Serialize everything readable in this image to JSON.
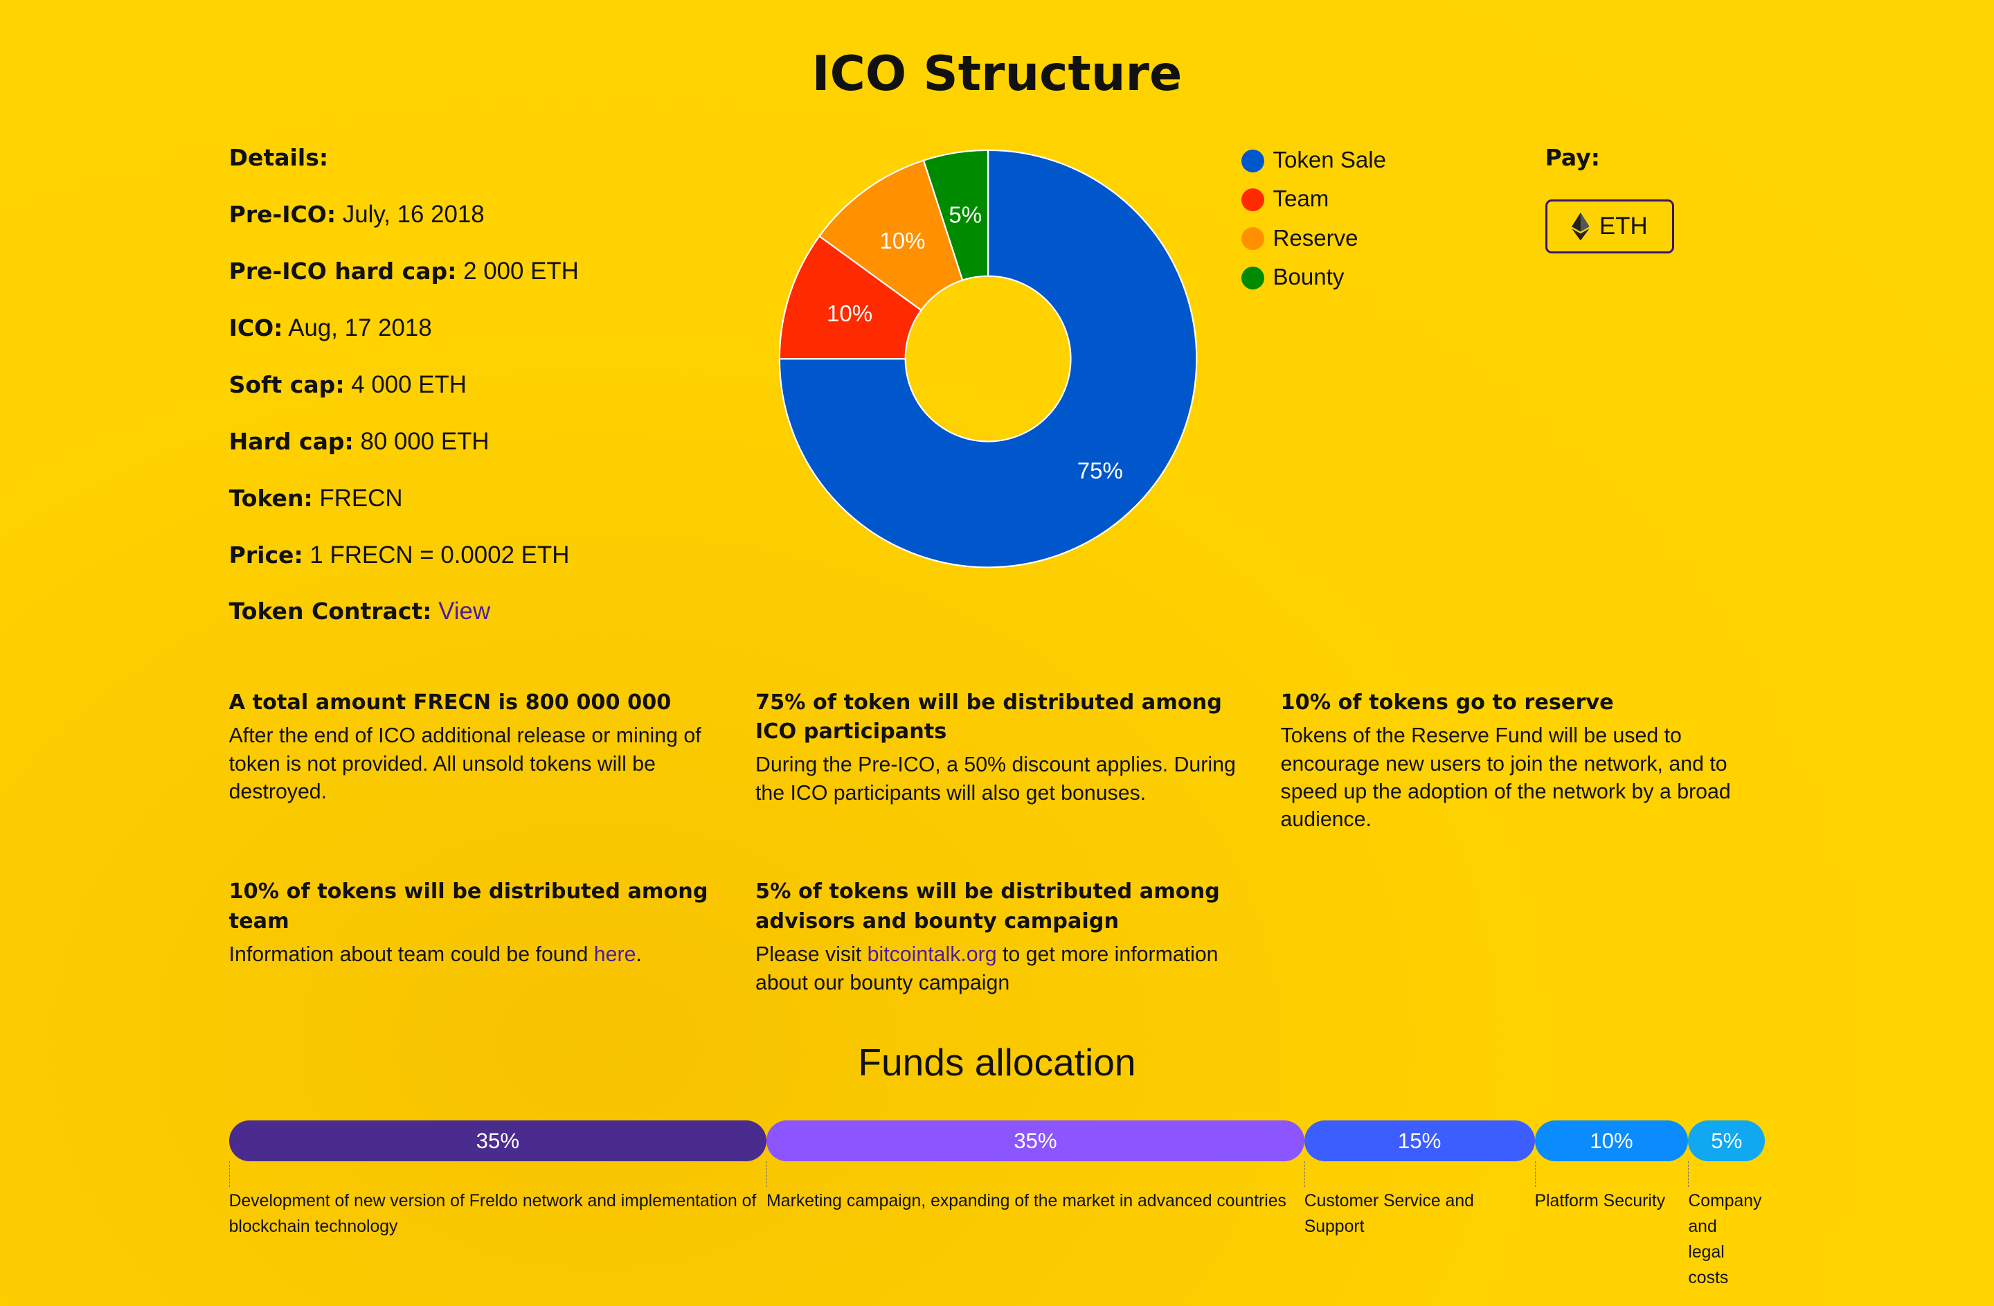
{
  "title": "ICO Structure",
  "details": {
    "heading": "Details:",
    "items": [
      {
        "label": "Pre-ICO:",
        "value": " July, 16 2018"
      },
      {
        "label": "Pre-ICO hard cap:",
        "value": " 2 000 ETH"
      },
      {
        "label": "ICO:",
        "value": " Aug, 17 2018"
      },
      {
        "label": "Soft cap:",
        "value": " 4 000 ETH"
      },
      {
        "label": "Hard cap:",
        "value": " 80 000 ETH"
      },
      {
        "label": "Token:",
        "value": " FRECN"
      },
      {
        "label": "Price:",
        "value": " 1 FRECN = 0.0002 ETH"
      }
    ],
    "contract_label": "Token Contract:",
    "contract_link": "View"
  },
  "chart_data": {
    "type": "pie",
    "donut": true,
    "categories": [
      "Token Sale",
      "Team",
      "Reserve",
      "Bounty"
    ],
    "values": [
      75,
      10,
      10,
      5
    ],
    "labels": [
      "75%",
      "10%",
      "10%",
      "5%"
    ],
    "colors": [
      "#0057CC",
      "#FF2A00",
      "#FF9000",
      "#008A00"
    ],
    "legend_position": "right"
  },
  "pay": {
    "label": "Pay:",
    "button": "ETH",
    "icon": "ethereum-icon"
  },
  "info": [
    {
      "title": "A total amount FRECN is 800 000 000",
      "body": "After the end of ICO additional release or mining of token is not provided. All unsold tokens will be destroyed."
    },
    {
      "title": "75% of token will be distributed among ICO participants",
      "body": "During the Pre-ICO, a 50% discount applies. During the ICO participants will also get bonuses."
    },
    {
      "title": "10% of tokens go to reserve",
      "body": "Tokens of the Reserve Fund will be used to encourage new users to join the network, and to speed up the adoption of the network by a broad audience."
    },
    {
      "title": "10% of tokens will be distributed among team",
      "body_pre": "Information about team could be found ",
      "link": "here",
      "body_post": "."
    },
    {
      "title": "5% of tokens will be distributed among advisors and bounty campaign",
      "body_pre": "Please visit ",
      "link": "bitcointalk.org",
      "body_post": " to get more information about our bounty campaign"
    }
  ],
  "funds": {
    "title": "Funds allocation",
    "items": [
      {
        "percent": "35%",
        "value": 35,
        "label": "Development of new version of Freldo network and implementation of blockchain technology",
        "color": "#4A2C8F"
      },
      {
        "percent": "35%",
        "value": 35,
        "label": "Marketing campaign, expanding of the market in advanced countries",
        "color": "#8B55FF"
      },
      {
        "percent": "15%",
        "value": 15,
        "label": "Customer Service and Support",
        "color": "#3D5EFF"
      },
      {
        "percent": "10%",
        "value": 10,
        "label": "Platform Security",
        "color": "#0A8CFF"
      },
      {
        "percent": "5%",
        "value": 5,
        "label": "Company and legal costs",
        "color": "#10A8F0"
      }
    ]
  }
}
